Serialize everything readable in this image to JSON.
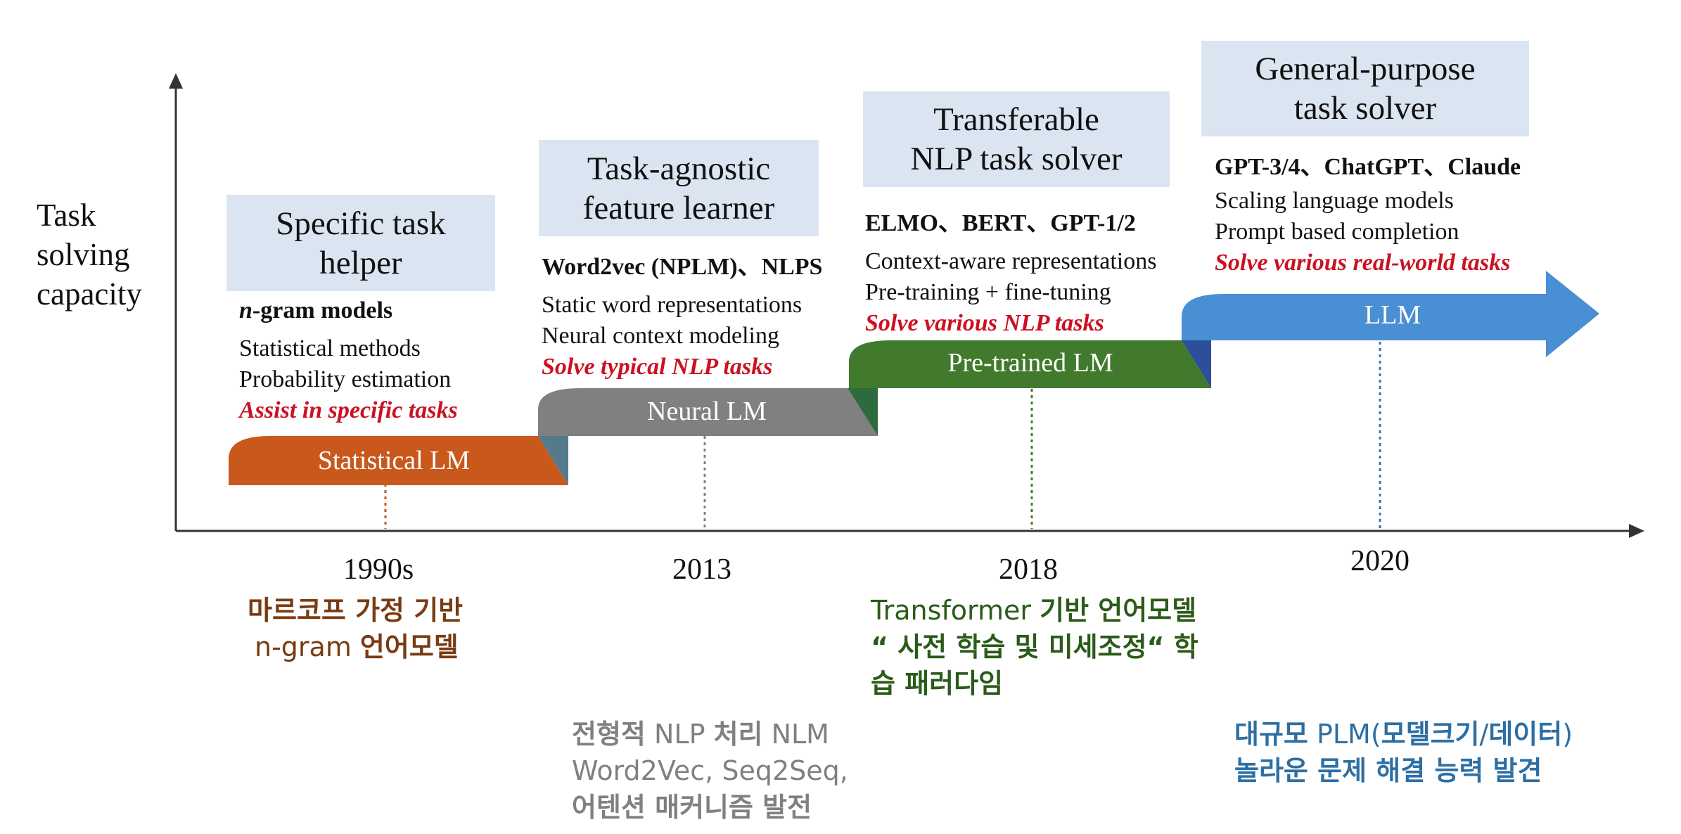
{
  "y_axis_label": "Task\nsolving\ncapacity",
  "colors": {
    "statistical": "#c8581b",
    "neural": "#808080",
    "pretrained": "#417a2c",
    "llm": "#4a8fd4",
    "highlight": "#cc1122",
    "box_bg": "#dbe4f1"
  },
  "stages": [
    {
      "box_title": "Specific task\nhelper",
      "head": "n-gram models",
      "head_italic_part": "n",
      "head_rest": "-gram models",
      "lines": [
        "Statistical methods",
        "Probability estimation"
      ],
      "highlight": "Assist in specific tasks",
      "bar_label": "Statistical LM",
      "year": "1990s"
    },
    {
      "box_title": "Task-agnostic\nfeature learner",
      "head": "Word2vec (NPLM)、NLPS",
      "lines": [
        "Static word representations",
        "Neural context modeling"
      ],
      "highlight": "Solve typical NLP tasks",
      "bar_label": "Neural LM",
      "year": "2013"
    },
    {
      "box_title": "Transferable\nNLP task solver",
      "head": "ELMO、BERT、GPT-1/2",
      "lines": [
        "Context-aware representations",
        "Pre-training + fine-tuning"
      ],
      "highlight": "Solve various NLP tasks",
      "bar_label": "Pre-trained LM",
      "year": "2018"
    },
    {
      "box_title": "General-purpose\ntask solver",
      "head": "GPT-3/4、ChatGPT、Claude",
      "lines": [
        "Scaling language models",
        "Prompt based completion"
      ],
      "highlight": "Solve various real-world tasks",
      "bar_label": "LLM",
      "year": "2020"
    }
  ],
  "notes": {
    "statistical": {
      "line1": "마르코프 가정 기반",
      "line2_light": "n-gram ",
      "line2_bold": "언어모델"
    },
    "pretrained": {
      "line1_light": "Transformer ",
      "line1_bold": "기반 언어모델",
      "line2": "“ 사전 학습 및 미세조정“  학",
      "line3": "습 패러다임"
    },
    "neural": {
      "line1_bold_a": "전형적",
      "line1_light_a": " NLP ",
      "line1_bold_b": "처리",
      "line1_light_b": " NLM",
      "line2": "Word2Vec, Seq2Seq,",
      "line3": "어텐션 매커니즘 발전"
    },
    "llm": {
      "line1_bold_a": "대규모",
      "line1_light_a": " PLM(",
      "line1_bold_b": "모델크기",
      "line1_light_b": "/",
      "line1_bold_c": "데이터",
      "line1_light_c": ")",
      "line2": "놀라운 문제 해결 능력 발견"
    }
  }
}
